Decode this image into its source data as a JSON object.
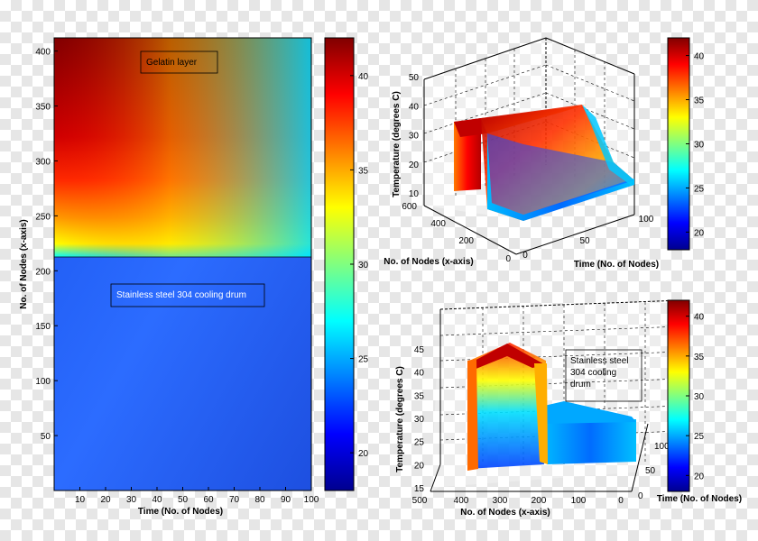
{
  "chart_data": [
    {
      "type": "heatmap",
      "title": "",
      "xlabel": "Time (No. of Nodes)",
      "ylabel": "No. of Nodes (x-axis)",
      "xlim": [
        0,
        100
      ],
      "ylim": [
        0,
        412
      ],
      "xticks": [
        "10",
        "20",
        "30",
        "40",
        "50",
        "60",
        "70",
        "80",
        "90",
        "100"
      ],
      "yticks": [
        "50",
        "100",
        "150",
        "200",
        "250",
        "300",
        "350",
        "400"
      ],
      "boundary_node": 212,
      "colorbar": {
        "min": 18,
        "max": 42,
        "ticks": [
          "20",
          "25",
          "30",
          "35",
          "40"
        ]
      },
      "annotations": [
        "Gelatin layer",
        "Stainless steel 304 cooling drum"
      ]
    },
    {
      "type": "area",
      "title": "",
      "xlabel": "No. of Nodes (x-axis)",
      "ylabel": "Time (No. of Nodes)",
      "zlabel": "Temperature (degrees C)",
      "zticks": [
        "10",
        "20",
        "30",
        "40",
        "50"
      ],
      "xticks": [
        "0",
        "200",
        "400",
        "600"
      ],
      "yticks": [
        "0",
        "50",
        "100"
      ],
      "colorbar": {
        "min": 18,
        "max": 42,
        "ticks": [
          "20",
          "25",
          "30",
          "35",
          "40"
        ]
      }
    },
    {
      "type": "area",
      "title": "",
      "xlabel": "No. of Nodes (x-axis)",
      "ylabel": "Time (No. of Nodes)",
      "zlabel": "Temperature (degrees C)",
      "zticks": [
        "15",
        "20",
        "25",
        "30",
        "35",
        "40",
        "45"
      ],
      "xticks": [
        "500",
        "400",
        "300",
        "200",
        "100",
        "0"
      ],
      "yticks": [
        "0",
        "50",
        "100"
      ],
      "colorbar": {
        "min": 18,
        "max": 42,
        "ticks": [
          "20",
          "25",
          "30",
          "35",
          "40"
        ]
      },
      "annotations": [
        "Stainless steel",
        "304 cooling",
        "drum"
      ]
    }
  ]
}
